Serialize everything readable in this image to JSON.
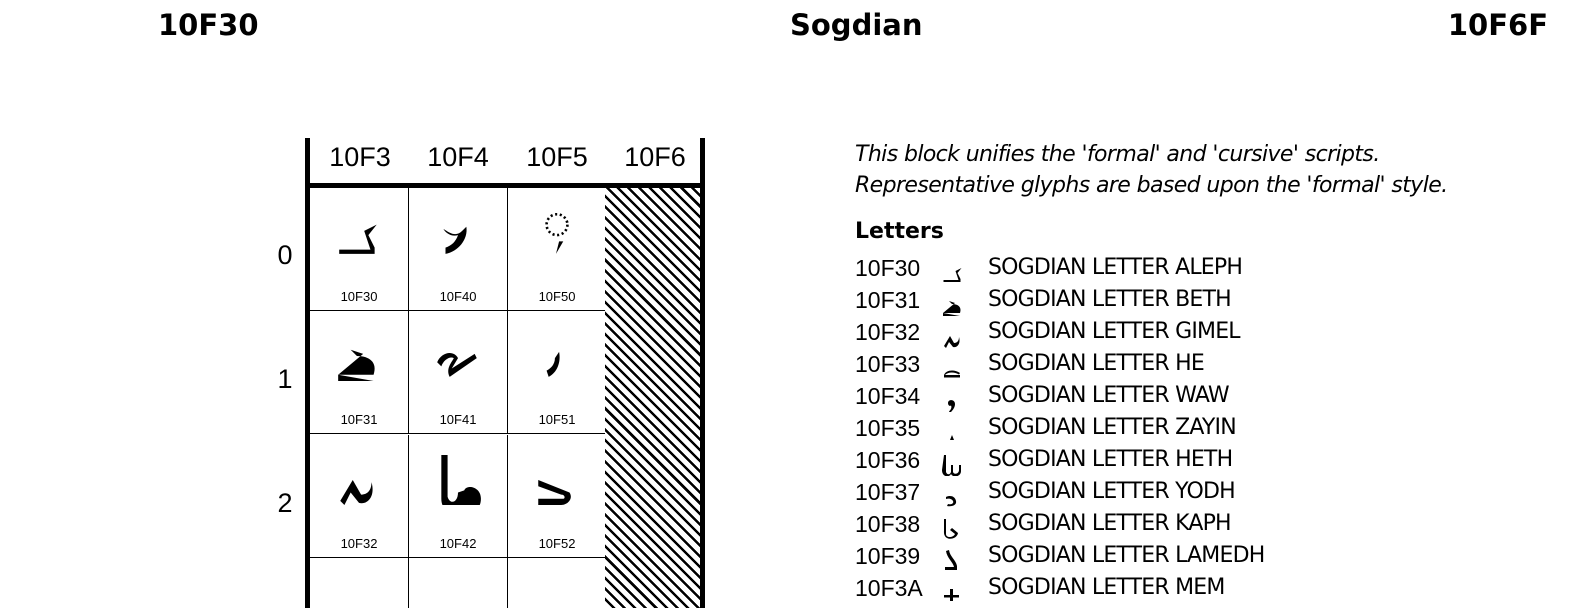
{
  "header": {
    "left": "10F30",
    "title": "Sogdian",
    "right": "10F6F"
  },
  "grid": {
    "columns": [
      "10F3",
      "10F4",
      "10F5",
      "10F6"
    ],
    "rows": [
      "0",
      "1",
      "2"
    ],
    "cells": [
      [
        "10F30",
        "10F40",
        "10F50"
      ],
      [
        "10F31",
        "10F41",
        "10F51"
      ],
      [
        "10F32",
        "10F42",
        "10F52"
      ],
      [
        "",
        "",
        ""
      ]
    ],
    "reserved_column": "10F6"
  },
  "notes": [
    "This block unifies the 'formal' and 'cursive' scripts.",
    "Representative glyphs are based upon the 'formal' style."
  ],
  "section": "Letters",
  "letters": [
    {
      "code": "10F30",
      "name": "SOGDIAN LETTER ALEPH"
    },
    {
      "code": "10F31",
      "name": "SOGDIAN LETTER BETH"
    },
    {
      "code": "10F32",
      "name": "SOGDIAN LETTER GIMEL"
    },
    {
      "code": "10F33",
      "name": "SOGDIAN LETTER HE"
    },
    {
      "code": "10F34",
      "name": "SOGDIAN LETTER WAW"
    },
    {
      "code": "10F35",
      "name": "SOGDIAN LETTER ZAYIN"
    },
    {
      "code": "10F36",
      "name": "SOGDIAN LETTER HETH"
    },
    {
      "code": "10F37",
      "name": "SOGDIAN LETTER YODH"
    },
    {
      "code": "10F38",
      "name": "SOGDIAN LETTER KAPH"
    },
    {
      "code": "10F39",
      "name": "SOGDIAN LETTER LAMEDH"
    },
    {
      "code": "10F3A",
      "name": "SOGDIAN LETTER MEM"
    }
  ]
}
